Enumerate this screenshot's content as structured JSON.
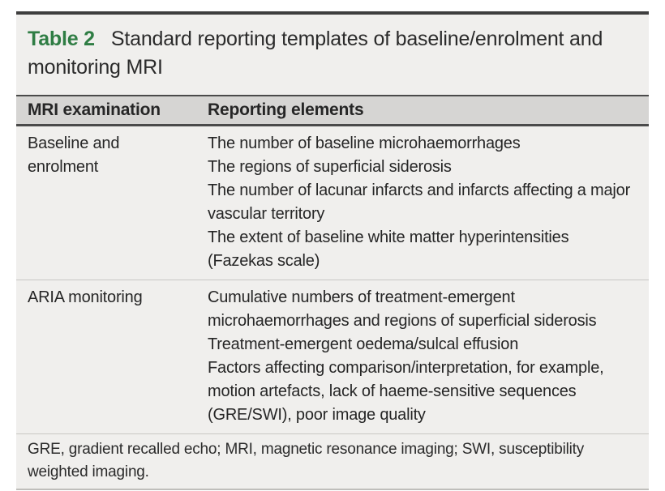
{
  "table": {
    "label": "Table 2",
    "title": "Standard reporting templates of baseline/enrolment and monitoring MRI",
    "columns": [
      "MRI examination",
      "Reporting elements"
    ],
    "rows": [
      {
        "examination": "Baseline and enrolment",
        "elements": [
          "The number of baseline microhaemorrhages",
          "The regions of superficial siderosis",
          "The number of lacunar infarcts and infarcts affecting a major vascular territory",
          "The extent of baseline white matter hyperintensities (Fazekas scale)"
        ]
      },
      {
        "examination": "ARIA monitoring",
        "elements": [
          "Cumulative numbers of treatment-emergent microhaemorrhages and regions of superficial siderosis",
          "Treatment-emergent oedema/sulcal effusion",
          "Factors affecting comparison/interpretation, for example, motion artefacts, lack of haeme-sensitive sequences (GRE/SWI), poor image quality"
        ]
      }
    ],
    "footnote": "GRE, gradient recalled echo; MRI, magnetic resonance imaging; SWI, susceptibility weighted imaging.",
    "colors": {
      "accent_green": "#2f7d44",
      "table_bg": "#f0efed",
      "header_bg": "#d6d5d3",
      "rule_dark": "#3e3e3e",
      "rule_light": "#c8c7c4"
    }
  }
}
